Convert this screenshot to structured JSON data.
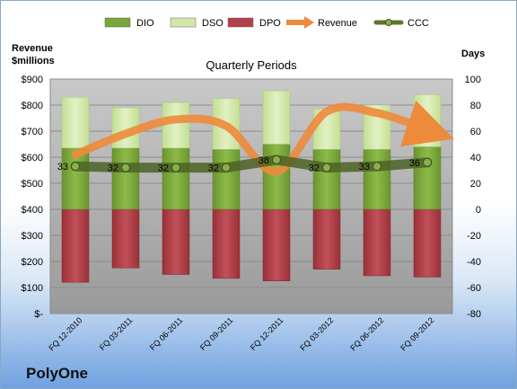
{
  "company": "PolyOne",
  "chart_data": {
    "type": "bar",
    "title": "Quarterly Periods",
    "left_axis": {
      "label_lines": [
        "Revenue",
        "$millions"
      ],
      "range": [
        0,
        900
      ],
      "ticks": [
        0,
        100,
        200,
        300,
        400,
        500,
        600,
        700,
        800,
        900
      ],
      "tick_labels": [
        "$-",
        "$100",
        "$200",
        "$300",
        "$400",
        "$500",
        "$600",
        "$700",
        "$800",
        "$900"
      ]
    },
    "right_axis": {
      "label": "Days",
      "range": [
        -80,
        100
      ],
      "ticks": [
        -80,
        -60,
        -40,
        -20,
        0,
        20,
        40,
        60,
        80,
        100
      ],
      "tick_labels": [
        "-80",
        "-60",
        "-40",
        "-20",
        "0",
        "20",
        "40",
        "60",
        "80",
        "100"
      ]
    },
    "categories": [
      "FQ 12-2010",
      "FQ 03-2011",
      "FQ 06-2011",
      "FQ 09-2011",
      "FQ 12-2011",
      "FQ 03-2012",
      "FQ 06-2012",
      "FQ 09-2012"
    ],
    "legend": {
      "position": "top",
      "entries": [
        {
          "name": "DIO",
          "color": "#7aa63a",
          "kind": "box"
        },
        {
          "name": "DSO",
          "color": "#d3e8a8",
          "kind": "box"
        },
        {
          "name": "DPO",
          "color": "#b2404a",
          "kind": "box"
        },
        {
          "name": "Revenue",
          "color": "#ee8a3c",
          "kind": "arrow"
        },
        {
          "name": "CCC",
          "color": "#5d7530",
          "kind": "line"
        }
      ]
    },
    "series": [
      {
        "name": "DIO",
        "axis": "right",
        "color": "#7aa63a",
        "values": [
          47,
          47,
          47,
          46,
          50,
          46,
          46,
          48
        ]
      },
      {
        "name": "DSO",
        "axis": "right",
        "color": "#d3e8a8",
        "values": [
          39,
          31,
          35,
          39,
          41,
          31,
          34,
          40
        ]
      },
      {
        "name": "DPO",
        "axis": "right",
        "color": "#b2404a",
        "values": [
          -56,
          -45,
          -50,
          -53,
          -55,
          -46,
          -51,
          -52
        ]
      },
      {
        "name": "Revenue",
        "axis": "left",
        "color": "#ee8a3c",
        "values": [
          610,
          690,
          745,
          720,
          545,
          775,
          770,
          705
        ]
      },
      {
        "name": "CCC",
        "axis": "right",
        "color": "#5d7530",
        "values": [
          33,
          32,
          32,
          32,
          38,
          32,
          33,
          36
        ],
        "labels": [
          "33",
          "32",
          "32",
          "32",
          "38",
          "32",
          "33",
          "36"
        ]
      }
    ],
    "grid": true
  }
}
